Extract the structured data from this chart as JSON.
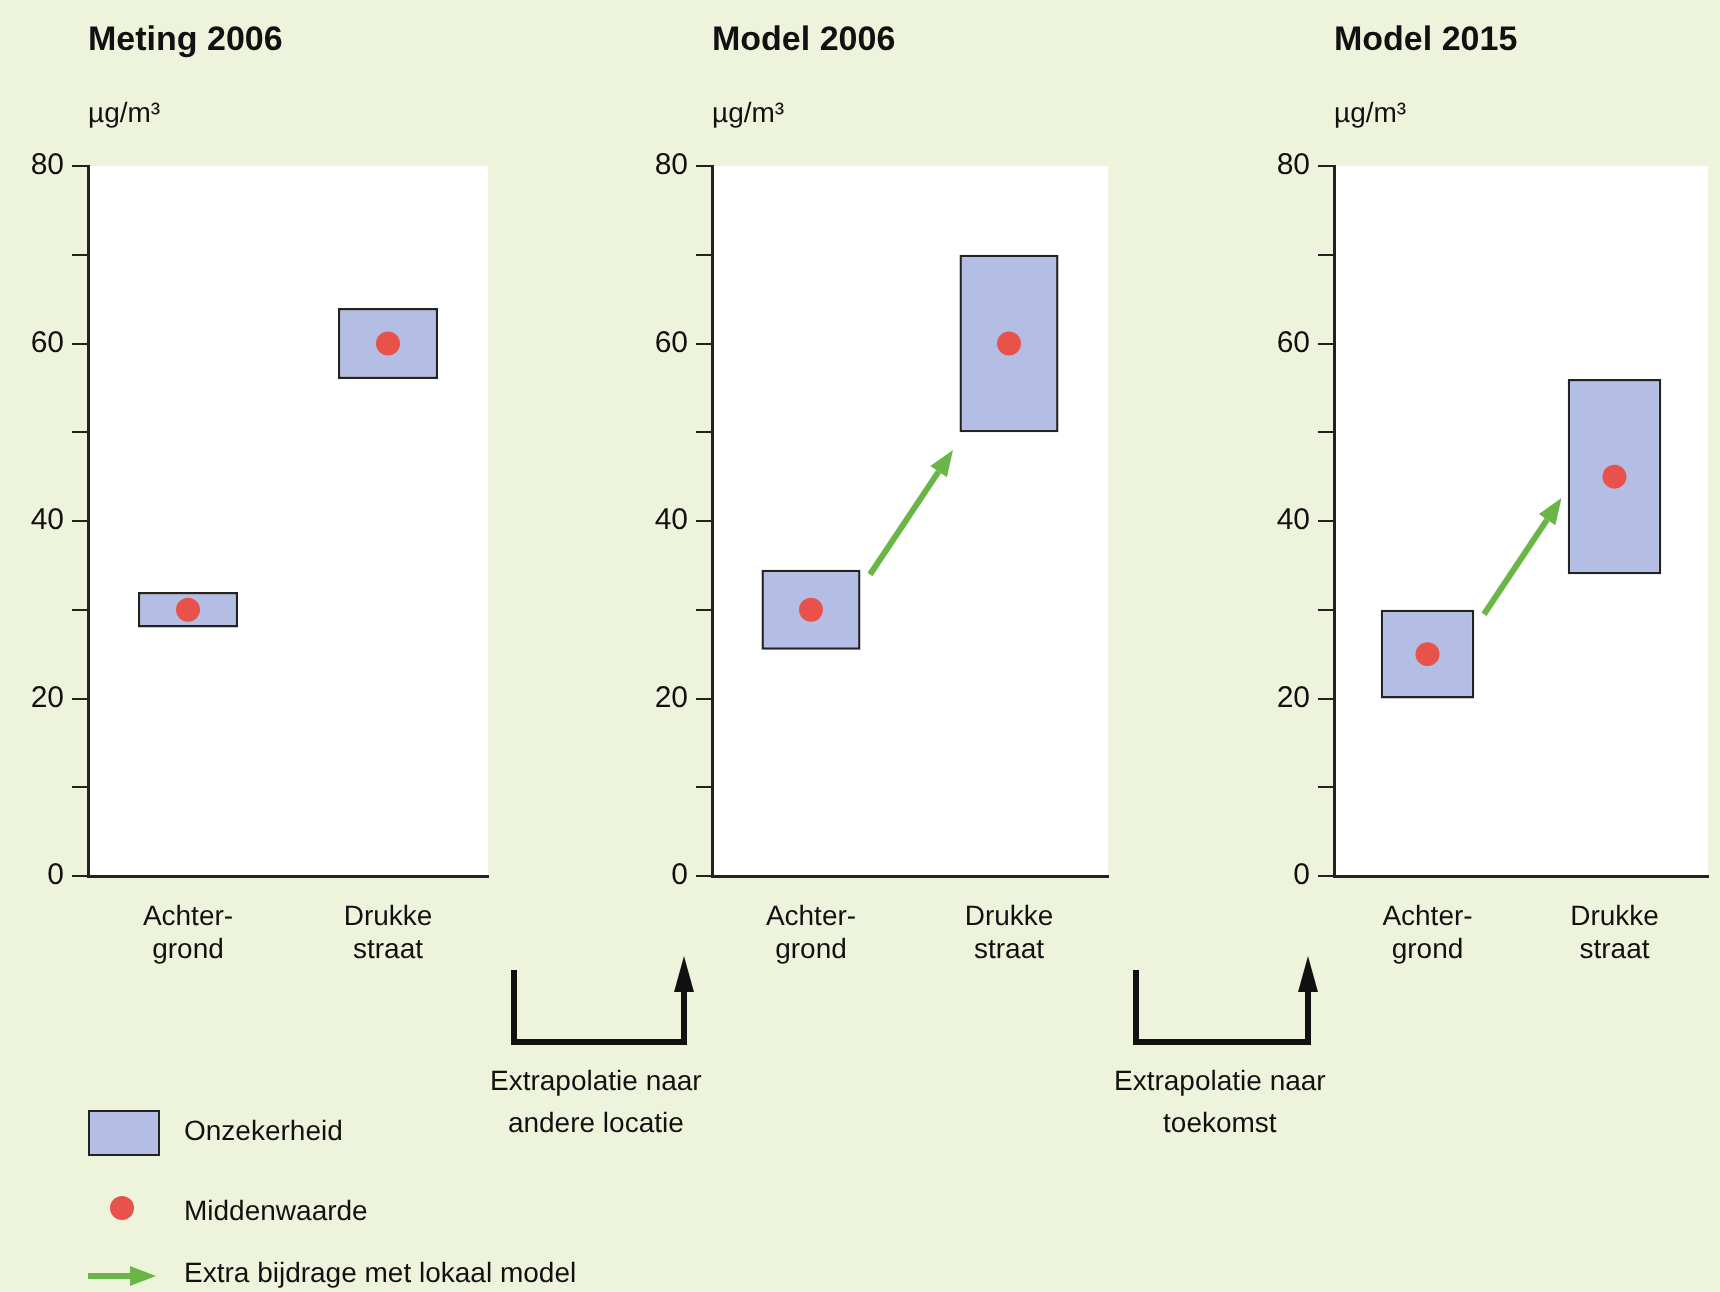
{
  "chart_data": [
    {
      "type": "bar",
      "title": "Meting 2006",
      "ylabel": "µg/m³",
      "categories": [
        "Achter-\ngrond",
        "Drukke\nstraat"
      ],
      "ylim": [
        0,
        80
      ],
      "yticks": [
        0,
        {
          "value": 10,
          "label": null
        },
        20,
        {
          "value": 30,
          "label": null
        },
        40,
        {
          "value": 50,
          "label": null
        },
        60,
        {
          "value": 70,
          "label": null
        },
        80
      ],
      "grid": false,
      "legend": "bottom",
      "marker": "circle",
      "series": [
        {
          "name": "Onzekerheid",
          "type": "bar",
          "color": "#b4bde3",
          "base": [
            28,
            56
          ],
          "values": [
            4,
            8
          ]
        },
        {
          "name": "Middenwaarde",
          "type": "scatter",
          "color": "#e8524a",
          "values": [
            30,
            60
          ]
        }
      ]
    },
    {
      "type": "bar",
      "title": "Model 2006",
      "ylabel": "µg/m³",
      "categories": [
        "Achter-\ngrond",
        "Drukke\nstraat"
      ],
      "ylim": [
        0,
        80
      ],
      "yticks": [
        0,
        {
          "value": 10,
          "label": null
        },
        20,
        {
          "value": 30,
          "label": null
        },
        40,
        {
          "value": 50,
          "label": null
        },
        60,
        {
          "value": 70,
          "label": null
        },
        80
      ],
      "grid": false,
      "marker": "circle",
      "series": [
        {
          "type": "bar",
          "color": "#b4bde3",
          "base": [
            25.5,
            50
          ],
          "values": [
            9,
            20
          ]
        },
        {
          "type": "scatter",
          "color": "#e8524a",
          "values": [
            30,
            60
          ]
        }
      ]
    },
    {
      "type": "bar",
      "title": "Model 2015",
      "ylabel": "µg/m³",
      "categories": [
        "Achter-\ngrond",
        "Drukke\nstraat"
      ],
      "ylim": [
        0,
        80
      ],
      "yticks": [
        0,
        {
          "value": 10,
          "label": null
        },
        20,
        {
          "value": 30,
          "label": null
        },
        40,
        {
          "value": 50,
          "label": null
        },
        60,
        {
          "value": 70,
          "label": null
        },
        80
      ],
      "grid": false,
      "marker": "circle",
      "series": [
        {
          "type": "bar",
          "color": "#b4bde3",
          "base": [
            20,
            34
          ],
          "values": [
            10,
            22
          ]
        },
        {
          "type": "scatter",
          "color": "#e8524a",
          "values": [
            25,
            45
          ]
        }
      ]
    },
    {
      "type": "other",
      "annotations": [
        "Extra bijdrage met lokaal model",
        "Extrapolatie naar\nandere locatie",
        "Extrapolatie naar\ntoekomst"
      ]
    }
  ]
}
